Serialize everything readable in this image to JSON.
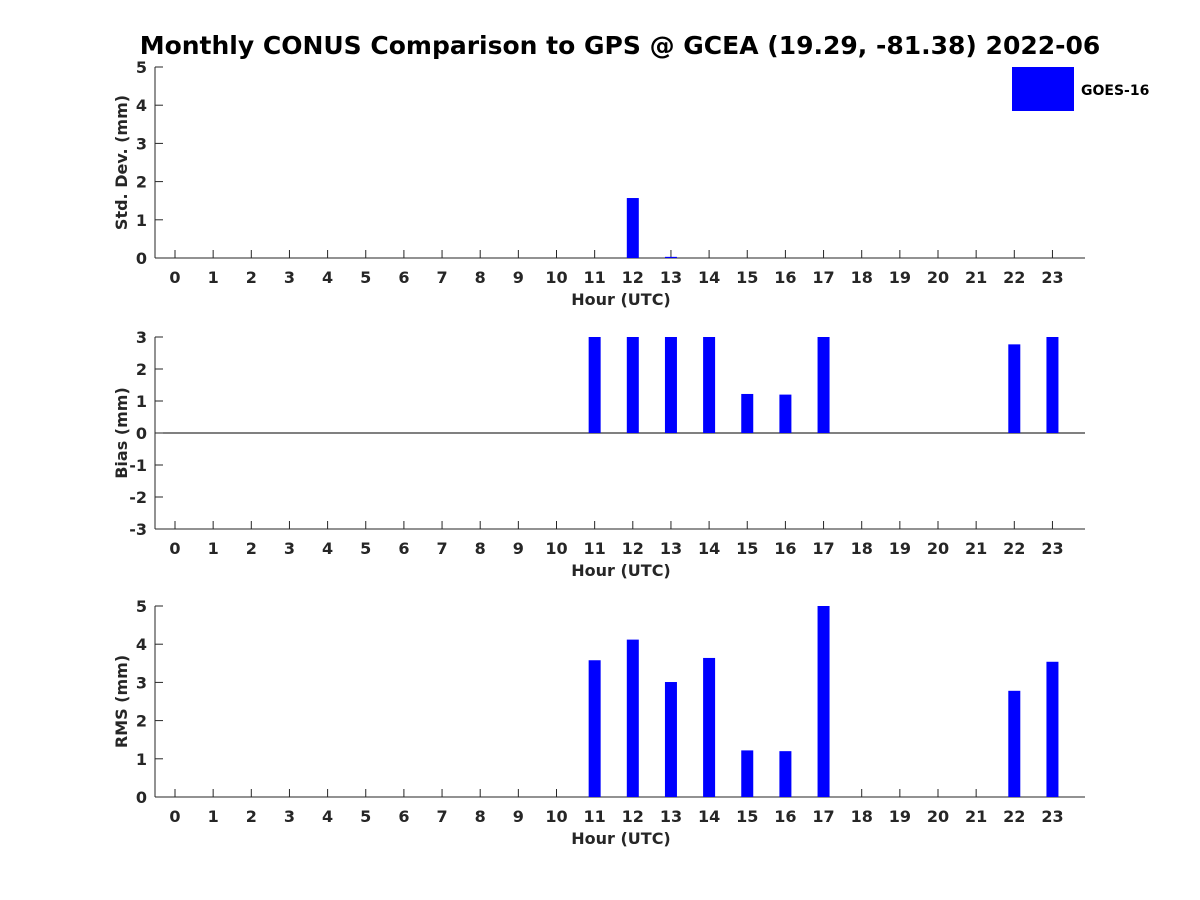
{
  "title": "Monthly CONUS Comparison to GPS @ GCEA (19.29, -81.38) 2022-06",
  "legend": {
    "label": "GOES-16",
    "color": "#0000ff"
  },
  "chart_data": [
    {
      "type": "bar",
      "ylabel": "Std. Dev. (mm)",
      "xlabel": "Hour (UTC)",
      "ylim": [
        0,
        5
      ],
      "yticks": [
        0,
        1,
        2,
        3,
        4,
        5
      ],
      "categories": [
        "0",
        "1",
        "2",
        "3",
        "4",
        "5",
        "6",
        "7",
        "8",
        "9",
        "10",
        "11",
        "12",
        "13",
        "14",
        "15",
        "16",
        "17",
        "18",
        "19",
        "20",
        "21",
        "22",
        "23"
      ],
      "series": [
        {
          "name": "GOES-16",
          "color": "#0000ff",
          "values": [
            null,
            null,
            null,
            null,
            null,
            null,
            null,
            null,
            null,
            null,
            null,
            null,
            1.57,
            0.03,
            null,
            null,
            null,
            null,
            null,
            null,
            null,
            null,
            null,
            null
          ]
        }
      ]
    },
    {
      "type": "bar",
      "ylabel": "Bias (mm)",
      "xlabel": "Hour (UTC)",
      "ylim": [
        -3,
        3
      ],
      "yticks": [
        -3,
        -2,
        -1,
        0,
        1,
        2,
        3
      ],
      "zero_line": true,
      "categories": [
        "0",
        "1",
        "2",
        "3",
        "4",
        "5",
        "6",
        "7",
        "8",
        "9",
        "10",
        "11",
        "12",
        "13",
        "14",
        "15",
        "16",
        "17",
        "18",
        "19",
        "20",
        "21",
        "22",
        "23"
      ],
      "series": [
        {
          "name": "GOES-16",
          "color": "#0000ff",
          "values": [
            null,
            null,
            null,
            null,
            null,
            null,
            null,
            null,
            null,
            null,
            null,
            3.0,
            3.0,
            3.0,
            3.0,
            1.22,
            1.2,
            3.0,
            null,
            null,
            null,
            null,
            2.77,
            3.0
          ]
        }
      ]
    },
    {
      "type": "bar",
      "ylabel": "RMS (mm)",
      "xlabel": "Hour (UTC)",
      "ylim": [
        0,
        5
      ],
      "yticks": [
        0,
        1,
        2,
        3,
        4,
        5
      ],
      "categories": [
        "0",
        "1",
        "2",
        "3",
        "4",
        "5",
        "6",
        "7",
        "8",
        "9",
        "10",
        "11",
        "12",
        "13",
        "14",
        "15",
        "16",
        "17",
        "18",
        "19",
        "20",
        "21",
        "22",
        "23"
      ],
      "series": [
        {
          "name": "GOES-16",
          "color": "#0000ff",
          "values": [
            null,
            null,
            null,
            null,
            null,
            null,
            null,
            null,
            null,
            null,
            null,
            3.58,
            4.12,
            3.01,
            3.64,
            1.22,
            1.2,
            5.0,
            null,
            null,
            null,
            null,
            2.78,
            3.54
          ]
        }
      ]
    }
  ]
}
